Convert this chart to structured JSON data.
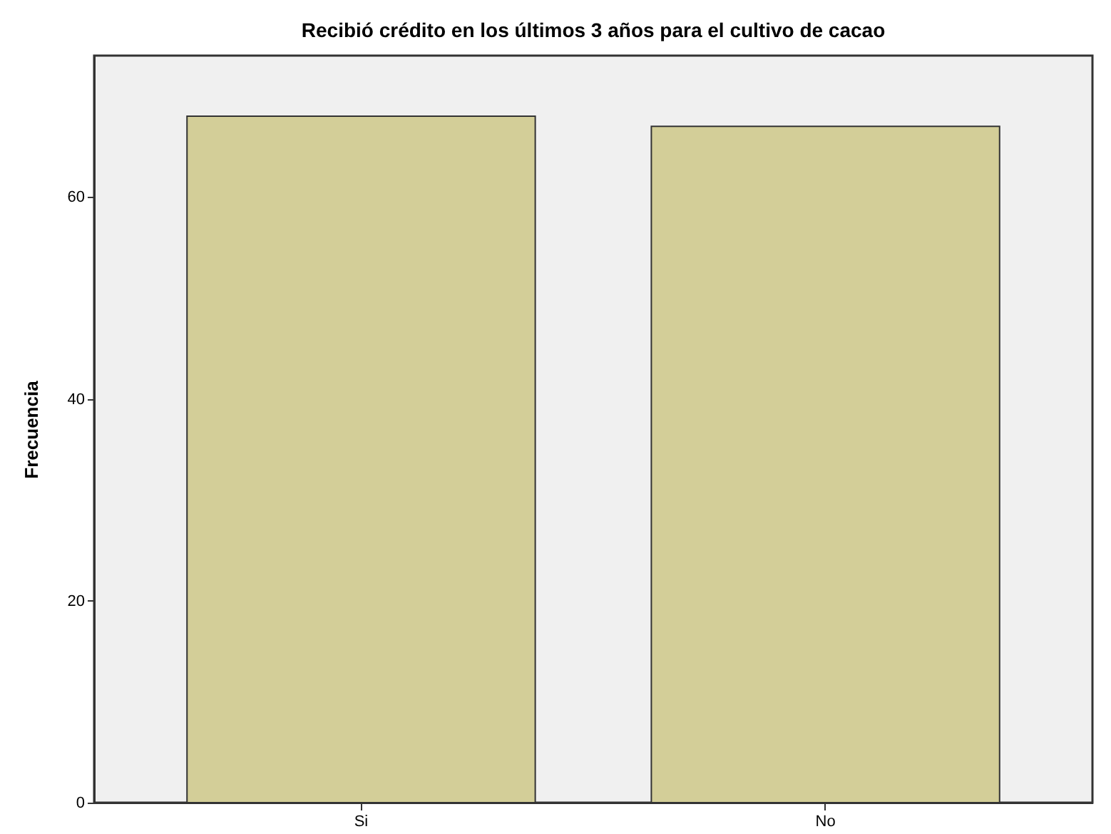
{
  "chart_data": {
    "type": "bar",
    "title": "Recibió crédito en los últimos 3 años para el cultivo de cacao",
    "ylabel": "Frecuencia",
    "categories": [
      "Si",
      "No"
    ],
    "values": [
      68,
      67
    ],
    "color": "#d3ce98",
    "ylim": [
      0,
      74
    ],
    "yticks": [
      0,
      20,
      40,
      60
    ],
    "grid": false
  }
}
